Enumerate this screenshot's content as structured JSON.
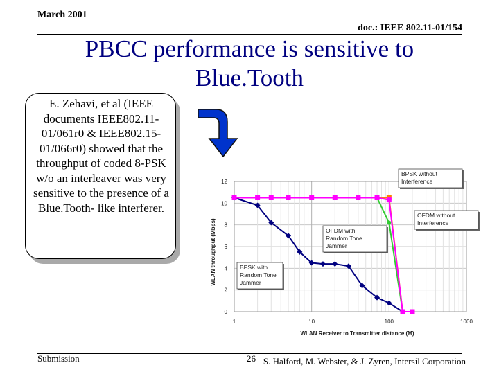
{
  "header": {
    "date": "March 2001",
    "doc": "doc.: IEEE 802.11-01/154"
  },
  "title": "PBCC performance is sensitive to Blue.Tooth",
  "callout": {
    "text": "E. Zehavi, et al (IEEE documents IEEE802.11-01/061r0 & IEEE802.15-01/066r0) showed that the throughput of coded 8-PSK w/o an interleaver was very sensitive to the presence of a Blue.Tooth- like interferer."
  },
  "footer": {
    "submission": "Submission",
    "page": "26",
    "authors": "S. Halford, M. Webster, & J. Zyren, Intersil Corporation"
  },
  "colors": {
    "title": "#000080",
    "arrow": "#0033cc",
    "bpsk_jammer": "#000080",
    "bpsk_no_interference": "#ff8000",
    "ofdm_jammer": "#33cc33",
    "ofdm_no_interference": "#ff00ff"
  },
  "chart_data": {
    "type": "line",
    "xscale": "log",
    "xlabel": "WLAN Receiver to Transmitter distance (M)",
    "ylabel": "WLAN throughput (Mbps)",
    "xlim": [
      1,
      1000
    ],
    "ylim": [
      0,
      12
    ],
    "xticks": [
      "1",
      "10",
      "100",
      "1000"
    ],
    "yticks": [
      "0",
      "2",
      "4",
      "6",
      "8",
      "10",
      "12"
    ],
    "grid": true,
    "series": [
      {
        "name": "BPSK with Random Tone Jammer",
        "color": "#000080",
        "marker": "diamond",
        "x": [
          1,
          2,
          3,
          5,
          7,
          10,
          14,
          20,
          30,
          45,
          70,
          100,
          150
        ],
        "y": [
          10.5,
          9.8,
          8.2,
          7.0,
          5.5,
          4.5,
          4.4,
          4.4,
          4.2,
          2.4,
          1.3,
          0.8,
          0
        ]
      },
      {
        "name": "BPSK without Interference",
        "color": "#ff8000",
        "marker": "square",
        "x": [
          1,
          100,
          150,
          200
        ],
        "y": [
          10.5,
          10.5,
          0,
          0
        ]
      },
      {
        "name": "OFDM with Random Tone Jammer",
        "color": "#33cc33",
        "marker": "circle",
        "x": [
          1,
          2,
          3,
          5,
          10,
          20,
          40,
          70,
          100,
          150,
          200
        ],
        "y": [
          10.5,
          10.5,
          10.5,
          10.5,
          10.5,
          10.5,
          10.5,
          10.5,
          8.2,
          0,
          0
        ]
      },
      {
        "name": "OFDM without Interference",
        "color": "#ff00ff",
        "marker": "square",
        "x": [
          1,
          2,
          3,
          5,
          10,
          20,
          40,
          70,
          100,
          150,
          200
        ],
        "y": [
          10.5,
          10.5,
          10.5,
          10.5,
          10.5,
          10.5,
          10.5,
          10.5,
          10.3,
          0,
          0
        ]
      }
    ],
    "annotations": [
      {
        "text": "BPSK without Interference"
      },
      {
        "text": "OFDM without Interference"
      },
      {
        "text": "OFDM with Random Tone Jammer"
      },
      {
        "text": "BPSK with Random Tone Jammer"
      }
    ]
  }
}
